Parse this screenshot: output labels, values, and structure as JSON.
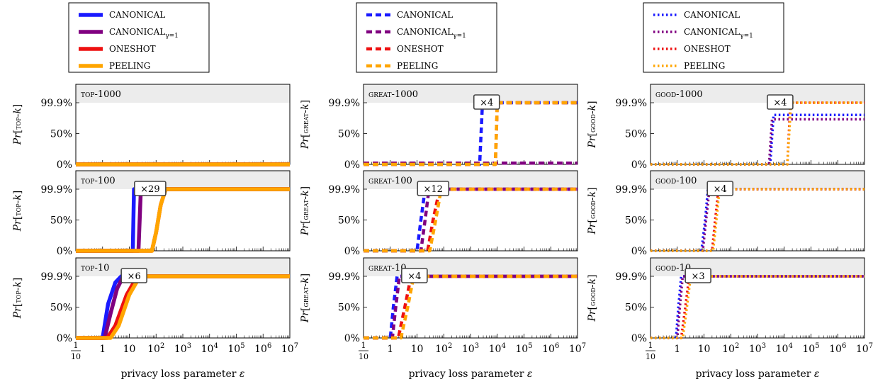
{
  "figure": {
    "x_label": "privacy loss parameter ε",
    "y_ticks": [
      "0%",
      "50%",
      "99.9%"
    ],
    "x_ticks": [
      "1/10",
      "1",
      "10",
      "10²",
      "10³",
      "10⁴",
      "10⁵",
      "10⁶",
      "10⁷"
    ]
  },
  "colors": {
    "CANONICAL": "#1a1aff",
    "CANONICAL_g1": "#800080",
    "ONESHOT": "#ee1111",
    "PEELING": "#ffa500",
    "panel_header": "#ececec"
  },
  "chart_data": [
    {
      "column": "top",
      "line_style": "solid",
      "y_label": "Pr[TOP-k]",
      "legend": [
        "CANONICAL",
        "CANONICAL_{γ=1}",
        "ONESHOT",
        "PEELING"
      ],
      "panels": [
        {
          "title": "TOP-1000",
          "type": "line",
          "x_scale": "log",
          "xlim": [
            0.1,
            10000000
          ],
          "ylim": [
            0,
            99.9
          ],
          "annotation": null,
          "series": [
            {
              "name": "CANONICAL",
              "x": [
                0.1,
                10000000
              ],
              "y": [
                0,
                0
              ]
            },
            {
              "name": "CANONICAL_{γ=1}",
              "x": [
                0.1,
                10000000
              ],
              "y": [
                0,
                0
              ]
            },
            {
              "name": "ONESHOT",
              "x": [
                0.1,
                10000000
              ],
              "y": [
                0,
                0
              ]
            },
            {
              "name": "PEELING",
              "x": [
                0.1,
                10000000
              ],
              "y": [
                0,
                0
              ]
            }
          ]
        },
        {
          "title": "TOP-100",
          "type": "line",
          "x_scale": "log",
          "xlim": [
            0.1,
            10000000
          ],
          "ylim": [
            0,
            99.9
          ],
          "annotation": {
            "text": "×29",
            "x": 60,
            "y": 99.9
          },
          "series": [
            {
              "name": "CANONICAL",
              "x": [
                0.1,
                13.5,
                15,
                10000000
              ],
              "y": [
                0,
                0,
                99.9,
                99.9
              ]
            },
            {
              "name": "CANONICAL_{γ=1}",
              "x": [
                0.1,
                22,
                27,
                10000000
              ],
              "y": [
                0,
                0,
                99.9,
                99.9
              ]
            },
            {
              "name": "ONESHOT",
              "x": [
                0.1,
                70,
                100,
                150,
                230,
                10000000
              ],
              "y": [
                0,
                0,
                30,
                75,
                99.9,
                99.9
              ]
            },
            {
              "name": "PEELING",
              "x": [
                0.1,
                70,
                100,
                150,
                230,
                10000000
              ],
              "y": [
                0,
                0,
                30,
                75,
                99.9,
                99.9
              ]
            }
          ]
        },
        {
          "title": "TOP-10",
          "type": "line",
          "x_scale": "log",
          "xlim": [
            0.1,
            10000000
          ],
          "ylim": [
            0,
            99.9
          ],
          "annotation": {
            "text": "×6",
            "x": 15,
            "y": 99.9
          },
          "series": [
            {
              "name": "CANONICAL",
              "x": [
                0.1,
                1,
                1.6,
                3,
                5,
                10000000
              ],
              "y": [
                0,
                0,
                55,
                90,
                99.9,
                99.9
              ]
            },
            {
              "name": "CANONICAL_{γ=1}",
              "x": [
                0.1,
                1.2,
                2,
                3.5,
                6,
                10000000
              ],
              "y": [
                0,
                0,
                40,
                80,
                99.9,
                99.9
              ]
            },
            {
              "name": "ONESHOT",
              "x": [
                0.1,
                1.5,
                3,
                8,
                20,
                10000000
              ],
              "y": [
                0,
                0,
                20,
                70,
                99.9,
                99.9
              ]
            },
            {
              "name": "PEELING",
              "x": [
                0.1,
                2,
                4,
                10,
                25,
                10000000
              ],
              "y": [
                0,
                0,
                20,
                70,
                99.9,
                99.9
              ]
            }
          ]
        }
      ]
    },
    {
      "column": "great",
      "line_style": "dashed",
      "y_label": "Pr[GREAT-k]",
      "legend": [
        "CANONICAL",
        "CANONICAL_{γ=1}",
        "ONESHOT",
        "PEELING"
      ],
      "panels": [
        {
          "title": "GREAT-1000",
          "type": "line",
          "x_scale": "log",
          "xlim": [
            0.1,
            10000000
          ],
          "ylim": [
            0,
            99.9
          ],
          "annotation": {
            "text": "×4",
            "x": 4000,
            "y": 99.9
          },
          "series": [
            {
              "name": "CANONICAL",
              "x": [
                0.1,
                2200,
                2800,
                10000000
              ],
              "y": [
                0,
                0,
                99.9,
                99.9
              ]
            },
            {
              "name": "CANONICAL_{γ=1}",
              "x": [
                0.1,
                10000000
              ],
              "y": [
                2,
                2
              ]
            },
            {
              "name": "ONESHOT",
              "x": [
                0.1,
                8500,
                10000,
                10000000
              ],
              "y": [
                0,
                0,
                99.9,
                99.9
              ]
            },
            {
              "name": "PEELING",
              "x": [
                0.1,
                8500,
                10000,
                10000000
              ],
              "y": [
                0,
                0,
                99.9,
                99.9
              ]
            }
          ]
        },
        {
          "title": "GREAT-100",
          "type": "line",
          "x_scale": "log",
          "xlim": [
            0.1,
            10000000
          ],
          "ylim": [
            0,
            99.9
          ],
          "annotation": {
            "text": "×12",
            "x": 40,
            "y": 99.9
          },
          "series": [
            {
              "name": "CANONICAL",
              "x": [
                0.1,
                10,
                14,
                20,
                10000000
              ],
              "y": [
                0,
                0,
                50,
                99.9,
                99.9
              ]
            },
            {
              "name": "CANONICAL_{γ=1}",
              "x": [
                0.1,
                14,
                20,
                28,
                10000000
              ],
              "y": [
                0,
                0,
                50,
                99.9,
                99.9
              ]
            },
            {
              "name": "ONESHOT",
              "x": [
                0.1,
                25,
                40,
                70,
                10000000
              ],
              "y": [
                0,
                0,
                50,
                99.9,
                99.9
              ]
            },
            {
              "name": "PEELING",
              "x": [
                0.1,
                30,
                50,
                80,
                10000000
              ],
              "y": [
                0,
                0,
                50,
                99.9,
                99.9
              ]
            }
          ]
        },
        {
          "title": "GREAT-10",
          "type": "line",
          "x_scale": "log",
          "xlim": [
            0.1,
            10000000
          ],
          "ylim": [
            0,
            99.9
          ],
          "annotation": {
            "text": "×4",
            "x": 8,
            "y": 99.9
          },
          "series": [
            {
              "name": "CANONICAL",
              "x": [
                0.1,
                1,
                1.3,
                1.8,
                10000000
              ],
              "y": [
                0,
                0,
                50,
                99.9,
                99.9
              ]
            },
            {
              "name": "CANONICAL_{γ=1}",
              "x": [
                0.1,
                1.2,
                1.6,
                2.2,
                10000000
              ],
              "y": [
                0,
                0,
                50,
                99.9,
                99.9
              ]
            },
            {
              "name": "ONESHOT",
              "x": [
                0.1,
                2,
                3.5,
                6,
                10000000
              ],
              "y": [
                0,
                0,
                50,
                99.9,
                99.9
              ]
            },
            {
              "name": "PEELING",
              "x": [
                0.1,
                2.5,
                4.5,
                7.5,
                10000000
              ],
              "y": [
                0,
                0,
                50,
                99.9,
                99.9
              ]
            }
          ]
        }
      ]
    },
    {
      "column": "good",
      "line_style": "dotted",
      "y_label": "Pr[GOOD-k]",
      "legend": [
        "CANONICAL",
        "CANONICAL_{γ=1}",
        "ONESHOT",
        "PEELING"
      ],
      "panels": [
        {
          "title": "GOOD-1000",
          "type": "line",
          "x_scale": "log",
          "xlim": [
            0.1,
            10000000
          ],
          "ylim": [
            0,
            99.9
          ],
          "annotation": {
            "text": "×4",
            "x": 7000,
            "y": 99.9
          },
          "series": [
            {
              "name": "CANONICAL",
              "x": [
                0.1,
                3000,
                4000,
                10000000
              ],
              "y": [
                0,
                0,
                80,
                80
              ]
            },
            {
              "name": "CANONICAL_{γ=1}",
              "x": [
                0.1,
                2700,
                3500,
                10000000
              ],
              "y": [
                0,
                0,
                73,
                73
              ]
            },
            {
              "name": "ONESHOT",
              "x": [
                0.1,
                13000,
                17000,
                10000000
              ],
              "y": [
                0,
                0,
                99.9,
                99.9
              ]
            },
            {
              "name": "PEELING",
              "x": [
                0.1,
                13000,
                18000,
                10000000
              ],
              "y": [
                0,
                0,
                99.9,
                99.9
              ]
            }
          ]
        },
        {
          "title": "GOOD-100",
          "type": "line",
          "x_scale": "log",
          "xlim": [
            0.1,
            10000000
          ],
          "ylim": [
            0,
            99.9
          ],
          "annotation": {
            "text": "×4",
            "x": 40,
            "y": 99.9
          },
          "series": [
            {
              "name": "CANONICAL",
              "x": [
                0.1,
                8,
                11,
                14,
                10000000
              ],
              "y": [
                0,
                0,
                50,
                99.9,
                99.9
              ]
            },
            {
              "name": "CANONICAL_{γ=1}",
              "x": [
                0.1,
                9,
                12,
                16,
                10000000
              ],
              "y": [
                0,
                0,
                50,
                99.9,
                99.9
              ]
            },
            {
              "name": "ONESHOT",
              "x": [
                0.1,
                20,
                26,
                35,
                10000000
              ],
              "y": [
                0,
                0,
                50,
                99.9,
                99.9
              ]
            },
            {
              "name": "PEELING",
              "x": [
                0.1,
                22,
                29,
                38,
                10000000
              ],
              "y": [
                0,
                0,
                50,
                99.9,
                99.9
              ]
            }
          ]
        },
        {
          "title": "GOOD-10",
          "type": "line",
          "x_scale": "log",
          "xlim": [
            0.1,
            10000000
          ],
          "ylim": [
            0,
            99.9
          ],
          "annotation": {
            "text": "×3",
            "x": 6,
            "y": 99.9
          },
          "series": [
            {
              "name": "CANONICAL",
              "x": [
                0.1,
                0.9,
                1.1,
                1.4,
                10000000
              ],
              "y": [
                0,
                0,
                50,
                99.9,
                99.9
              ]
            },
            {
              "name": "CANONICAL_{γ=1}",
              "x": [
                0.1,
                1,
                1.25,
                1.6,
                10000000
              ],
              "y": [
                0,
                0,
                50,
                99.9,
                99.9
              ]
            },
            {
              "name": "ONESHOT",
              "x": [
                0.1,
                1.4,
                2,
                2.8,
                10000000
              ],
              "y": [
                0,
                0,
                50,
                99.9,
                99.9
              ]
            },
            {
              "name": "PEELING",
              "x": [
                0.1,
                1.6,
                2.3,
                3.2,
                10000000
              ],
              "y": [
                0,
                0,
                50,
                99.9,
                99.9
              ]
            }
          ]
        }
      ]
    }
  ]
}
